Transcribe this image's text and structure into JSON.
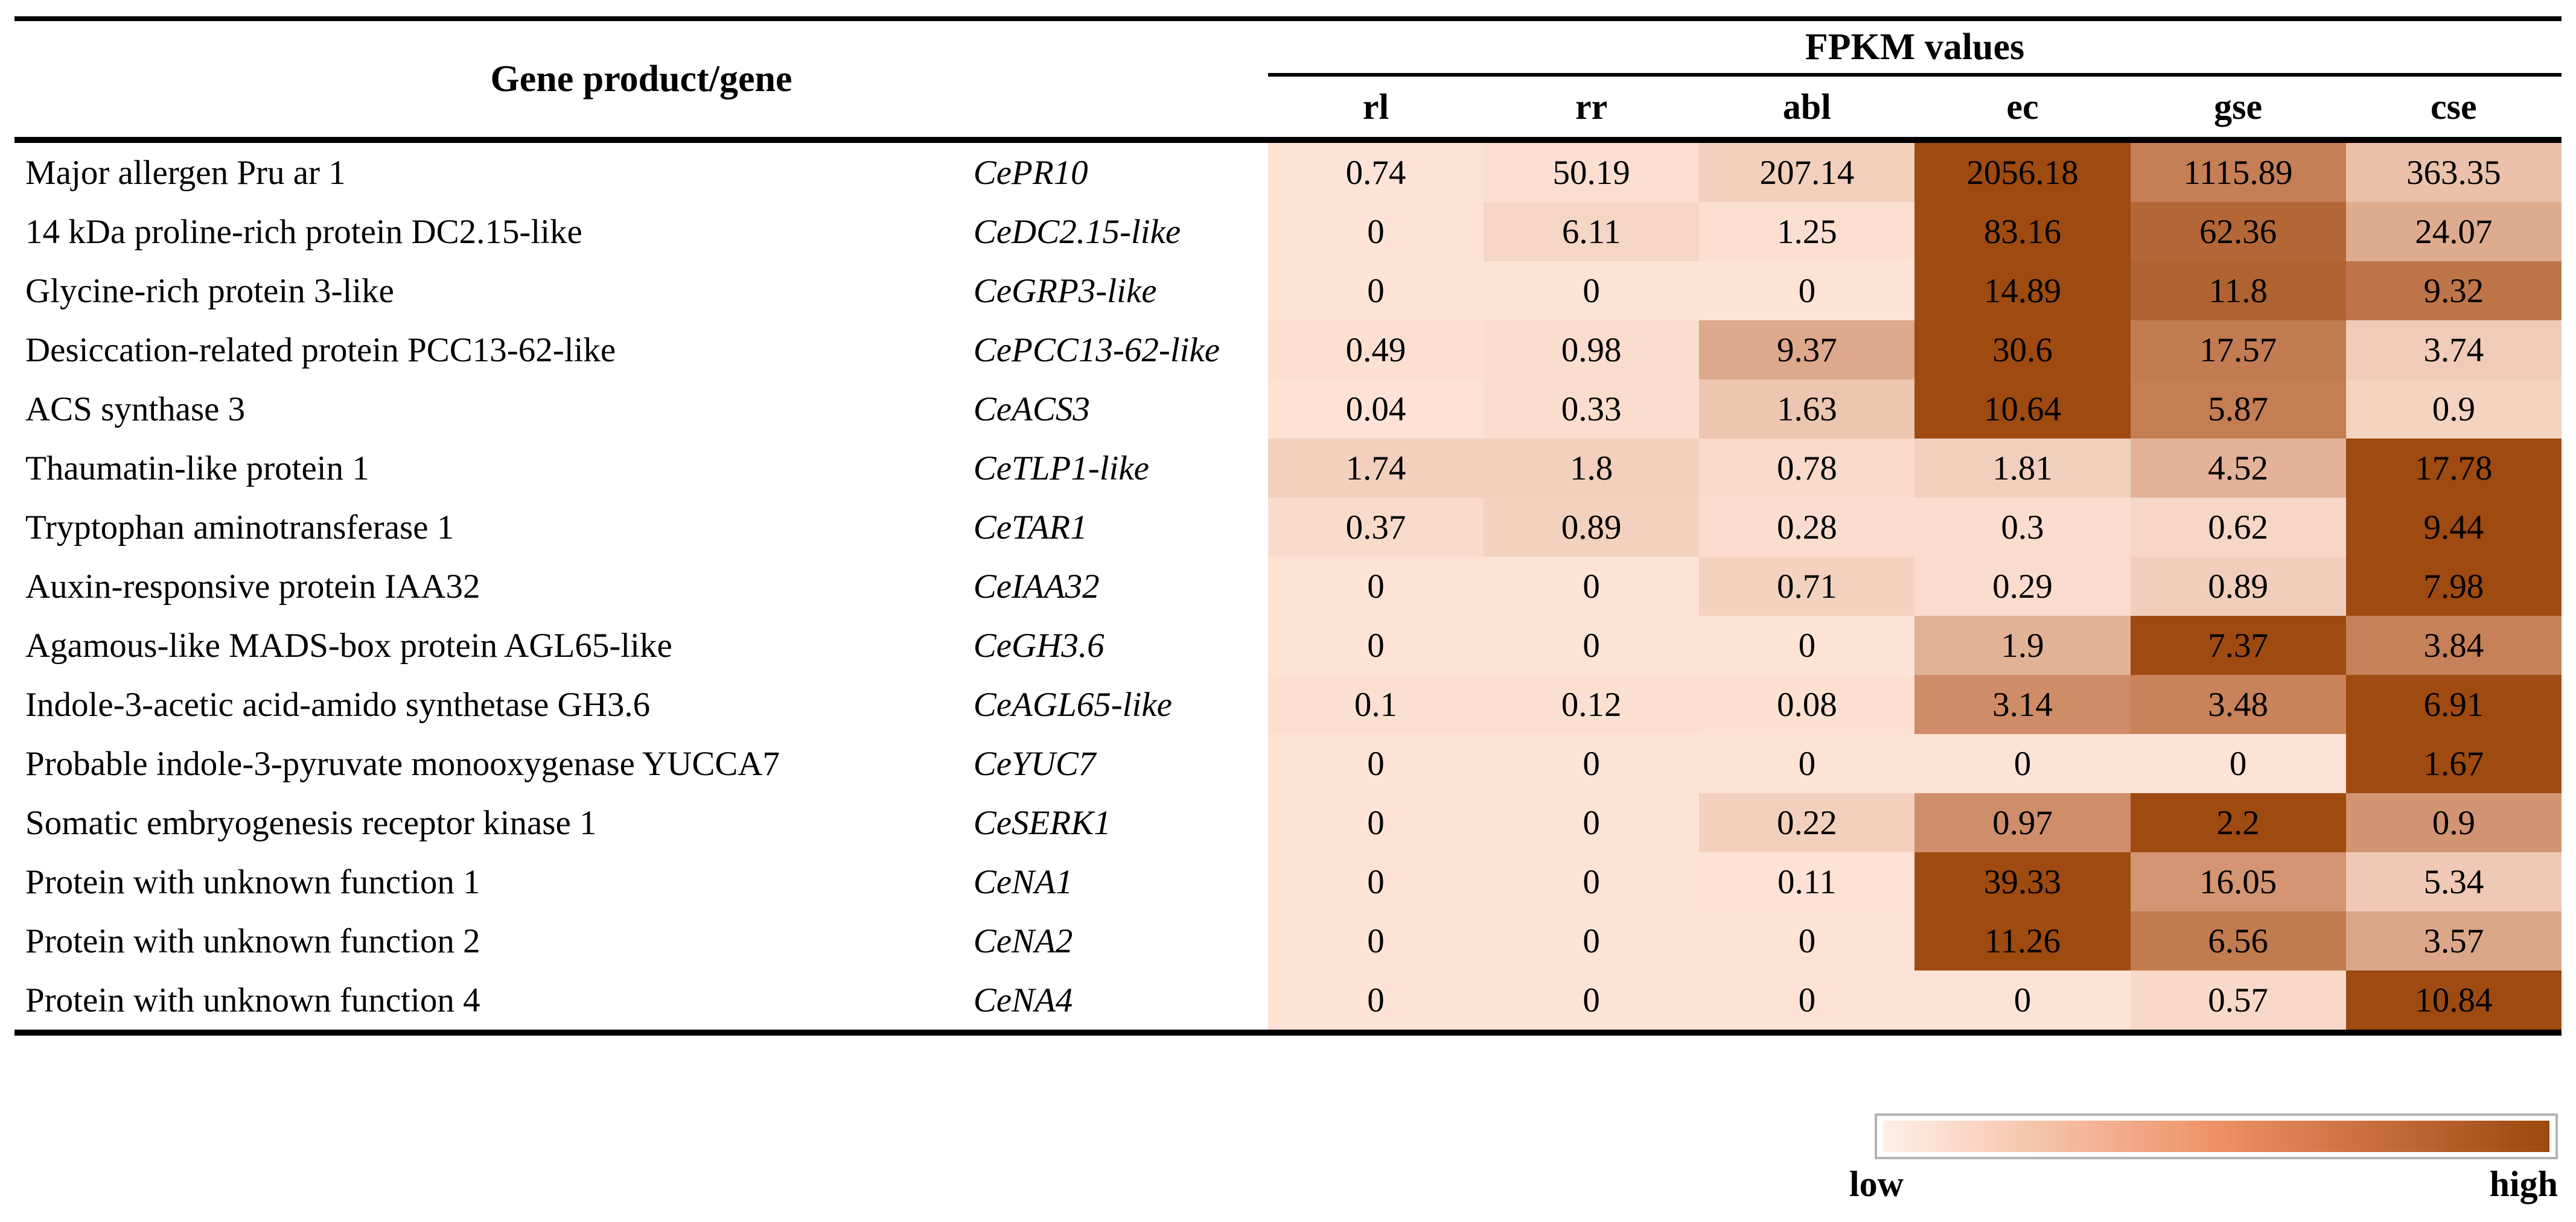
{
  "table": {
    "group_header": "Gene product/gene",
    "fpkm_header": "FPKM values",
    "column_headers": [
      "rl",
      "rr",
      "abl",
      "ec",
      "gse",
      "cse"
    ]
  },
  "chart_data": {
    "type": "heatmap",
    "title": "FPKM values",
    "columns": [
      "rl",
      "rr",
      "abl",
      "ec",
      "gse",
      "cse"
    ],
    "color_scale": {
      "low": "#fde3d6",
      "mid": "#c9835c",
      "high": "#9e4a10",
      "normalization": "per-row-max"
    },
    "rows": [
      {
        "product": "Major allergen Pru ar 1",
        "gene": "CePR10",
        "values": [
          0.74,
          50.19,
          207.14,
          2056.18,
          1115.89,
          363.35
        ]
      },
      {
        "product": "14 kDa proline-rich protein DC2.15-like",
        "gene": "CeDC2.15-like",
        "values": [
          0,
          6.11,
          1.25,
          83.16,
          62.36,
          24.07
        ]
      },
      {
        "product": "Glycine-rich protein 3-like",
        "gene": "CeGRP3-like",
        "values": [
          0,
          0,
          0,
          14.89,
          11.8,
          9.32
        ]
      },
      {
        "product": "Desiccation-related protein PCC13-62-like",
        "gene": "CePCC13-62-like",
        "values": [
          0.49,
          0.98,
          9.37,
          30.6,
          17.57,
          3.74
        ]
      },
      {
        "product": "ACS synthase 3",
        "gene": "CeACS3",
        "values": [
          0.04,
          0.33,
          1.63,
          10.64,
          5.87,
          0.9
        ]
      },
      {
        "product": "Thaumatin-like protein 1",
        "gene": "CeTLP1-like",
        "values": [
          1.74,
          1.8,
          0.78,
          1.81,
          4.52,
          17.78
        ]
      },
      {
        "product": "Tryptophan aminotransferase 1",
        "gene": "CeTAR1",
        "values": [
          0.37,
          0.89,
          0.28,
          0.3,
          0.62,
          9.44
        ]
      },
      {
        "product": "Auxin-responsive protein IAA32",
        "gene": "CeIAA32",
        "values": [
          0,
          0,
          0.71,
          0.29,
          0.89,
          7.98
        ]
      },
      {
        "product": "Agamous-like MADS-box protein AGL65-like",
        "gene": "CeGH3.6",
        "values": [
          0,
          0,
          0,
          1.9,
          7.37,
          3.84
        ]
      },
      {
        "product": "Indole-3-acetic acid-amido synthetase GH3.6",
        "gene": "CeAGL65-like",
        "values": [
          0.1,
          0.12,
          0.08,
          3.14,
          3.48,
          6.91
        ]
      },
      {
        "product": "Probable indole-3-pyruvate monooxygenase YUCCA7",
        "gene": "CeYUC7",
        "values": [
          0,
          0,
          0,
          0,
          0,
          1.67
        ]
      },
      {
        "product": "Somatic embryogenesis receptor kinase 1",
        "gene": "CeSERK1",
        "values": [
          0,
          0,
          0.22,
          0.97,
          2.2,
          0.9
        ]
      },
      {
        "product": "Protein with unknown function 1",
        "gene": "CeNA1",
        "values": [
          0,
          0,
          0.11,
          39.33,
          16.05,
          5.34
        ]
      },
      {
        "product": "Protein with unknown function 2",
        "gene": "CeNA2",
        "values": [
          0,
          0,
          0,
          11.26,
          6.56,
          3.57
        ]
      },
      {
        "product": "Protein with unknown function 4",
        "gene": "CeNA4",
        "values": [
          0,
          0,
          0,
          0,
          0.57,
          10.84
        ]
      }
    ]
  },
  "legend": {
    "low_label": "low",
    "high_label": "high",
    "gradient_stops": [
      "#fdefe7",
      "#ee9165",
      "#9c480e"
    ],
    "border_color": "#b3b3b3"
  }
}
